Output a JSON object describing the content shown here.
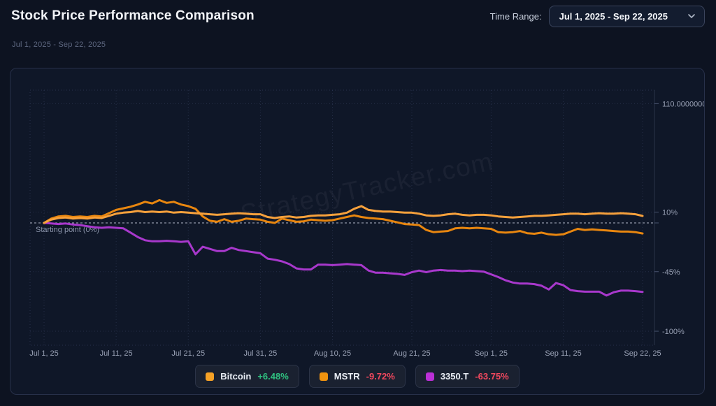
{
  "header": {
    "title": "Stock Price Performance Comparison",
    "time_range_label": "Time Range:",
    "time_range_value": "Jul 1, 2025 - Sep 22, 2025"
  },
  "icons": {
    "time_range_chevron": "chevron-down"
  },
  "subtitle": "Jul 1, 2025 - Sep 22, 2025",
  "watermark": "StrategyTracker.com",
  "colors": {
    "positive": "#2fbf7f",
    "negative": "#f1485e",
    "grid": "#2b3550",
    "axis_line": "#2a3347",
    "tick_text": "#99a1b5",
    "baseline_line": "#cdd4e4",
    "baseline_text": "#8b94aa"
  },
  "chart_data": {
    "type": "line",
    "title": "Stock Price Performance Comparison",
    "x_axis": {
      "unit": "date",
      "total_days": 83,
      "tick_days": [
        0,
        10,
        20,
        30,
        40,
        51,
        62,
        72,
        83
      ],
      "tick_labels": [
        "Jul 1, 25",
        "Jul 11, 25",
        "Jul 21, 25",
        "Jul 31, 25",
        "Aug 10, 25",
        "Aug 21, 25",
        "Sep 1, 25",
        "Sep 11, 25",
        "Sep 22, 25"
      ]
    },
    "y_axis": {
      "unit": "percent-change",
      "tick_values": [
        110,
        10,
        -45,
        -100
      ],
      "tick_labels": [
        "110.0000000",
        "10%",
        "-45%",
        "-100%"
      ],
      "range": [
        -110,
        122
      ],
      "grid": true
    },
    "baseline": {
      "value": 0,
      "label": "Starting point (0%)"
    },
    "legend_position": "bottom",
    "series": [
      {
        "name": "3350.T",
        "change": "-63.75%",
        "color": "#a838cc",
        "swatch_color": "#bb2fd6",
        "points": [
          [
            0,
            0
          ],
          [
            1,
            -0.5
          ],
          [
            2,
            -1
          ],
          [
            3,
            -0.5
          ],
          [
            4,
            -1.5
          ],
          [
            5,
            -2
          ],
          [
            6,
            -3
          ],
          [
            7,
            -4
          ],
          [
            8,
            -4.5
          ],
          [
            9,
            -4
          ],
          [
            10,
            -4.5
          ],
          [
            11,
            -5
          ],
          [
            12,
            -9
          ],
          [
            13,
            -13
          ],
          [
            14,
            -16
          ],
          [
            15,
            -17
          ],
          [
            16,
            -17
          ],
          [
            17,
            -16.5
          ],
          [
            18,
            -17
          ],
          [
            19,
            -17.5
          ],
          [
            20,
            -17
          ],
          [
            21,
            -29
          ],
          [
            22,
            -22
          ],
          [
            23,
            -24
          ],
          [
            24,
            -26
          ],
          [
            25,
            -26
          ],
          [
            26,
            -23
          ],
          [
            27,
            -25
          ],
          [
            28,
            -26
          ],
          [
            29,
            -27
          ],
          [
            30,
            -28
          ],
          [
            31,
            -33
          ],
          [
            32,
            -34
          ],
          [
            33,
            -35.5
          ],
          [
            34,
            -38
          ],
          [
            35,
            -42
          ],
          [
            36,
            -43
          ],
          [
            37,
            -43
          ],
          [
            38,
            -38.5
          ],
          [
            39,
            -38.5
          ],
          [
            40,
            -39
          ],
          [
            41,
            -38.5
          ],
          [
            42,
            -38
          ],
          [
            43,
            -38.5
          ],
          [
            44,
            -39
          ],
          [
            45,
            -44
          ],
          [
            46,
            -46
          ],
          [
            47,
            -46
          ],
          [
            48,
            -46.5
          ],
          [
            49,
            -47
          ],
          [
            50,
            -48
          ],
          [
            51,
            -45.5
          ],
          [
            52,
            -44
          ],
          [
            53,
            -45.5
          ],
          [
            54,
            -44
          ],
          [
            55,
            -43.5
          ],
          [
            56,
            -44
          ],
          [
            57,
            -44
          ],
          [
            58,
            -44.5
          ],
          [
            59,
            -44
          ],
          [
            60,
            -44.5
          ],
          [
            61,
            -45
          ],
          [
            62,
            -47.5
          ],
          [
            63,
            -50
          ],
          [
            64,
            -53
          ],
          [
            65,
            -55
          ],
          [
            66,
            -56
          ],
          [
            67,
            -56
          ],
          [
            68,
            -56.5
          ],
          [
            69,
            -58
          ],
          [
            70,
            -61.5
          ],
          [
            71,
            -55.5
          ],
          [
            72,
            -57.5
          ],
          [
            73,
            -62
          ],
          [
            74,
            -63
          ],
          [
            75,
            -63.5
          ],
          [
            76,
            -63.5
          ],
          [
            77,
            -63.5
          ],
          [
            78,
            -67
          ],
          [
            79,
            -64
          ],
          [
            80,
            -62.5
          ],
          [
            81,
            -62.5
          ],
          [
            82,
            -63
          ],
          [
            83,
            -63.75
          ]
        ]
      },
      {
        "name": "MSTR",
        "change": "-9.72%",
        "color": "#e8860f",
        "swatch_color": "#f0930f",
        "points": [
          [
            0,
            0
          ],
          [
            1,
            4
          ],
          [
            2,
            6
          ],
          [
            3,
            6.5
          ],
          [
            4,
            5.5
          ],
          [
            5,
            6
          ],
          [
            6,
            5.5
          ],
          [
            7,
            6.5
          ],
          [
            8,
            6
          ],
          [
            9,
            9
          ],
          [
            10,
            12
          ],
          [
            11,
            13.5
          ],
          [
            12,
            15
          ],
          [
            13,
            17
          ],
          [
            14,
            19.5
          ],
          [
            15,
            18
          ],
          [
            16,
            21
          ],
          [
            17,
            18.5
          ],
          [
            18,
            19.5
          ],
          [
            19,
            17
          ],
          [
            20,
            15.5
          ],
          [
            21,
            13
          ],
          [
            22,
            6
          ],
          [
            23,
            2
          ],
          [
            24,
            1
          ],
          [
            25,
            3.5
          ],
          [
            26,
            1
          ],
          [
            27,
            2
          ],
          [
            28,
            4
          ],
          [
            29,
            3.5
          ],
          [
            30,
            3
          ],
          [
            31,
            1
          ],
          [
            32,
            0
          ],
          [
            33,
            4
          ],
          [
            34,
            2.5
          ],
          [
            35,
            1
          ],
          [
            36,
            1.5
          ],
          [
            37,
            3
          ],
          [
            38,
            2.5
          ],
          [
            39,
            2
          ],
          [
            40,
            2.5
          ],
          [
            41,
            4
          ],
          [
            42,
            5.5
          ],
          [
            43,
            7
          ],
          [
            44,
            5.5
          ],
          [
            45,
            4.5
          ],
          [
            46,
            4
          ],
          [
            47,
            3.5
          ],
          [
            48,
            2
          ],
          [
            49,
            0.5
          ],
          [
            50,
            -1
          ],
          [
            51,
            -1.5
          ],
          [
            52,
            -2
          ],
          [
            53,
            -6.5
          ],
          [
            54,
            -8.5
          ],
          [
            55,
            -8
          ],
          [
            56,
            -7.5
          ],
          [
            57,
            -5
          ],
          [
            58,
            -4.5
          ],
          [
            59,
            -5
          ],
          [
            60,
            -4.5
          ],
          [
            61,
            -5
          ],
          [
            62,
            -5.5
          ],
          [
            63,
            -8.5
          ],
          [
            64,
            -9
          ],
          [
            65,
            -8.5
          ],
          [
            66,
            -7.5
          ],
          [
            67,
            -9.5
          ],
          [
            68,
            -10
          ],
          [
            69,
            -9
          ],
          [
            70,
            -10.5
          ],
          [
            71,
            -11
          ],
          [
            72,
            -10.5
          ],
          [
            73,
            -8
          ],
          [
            74,
            -5.5
          ],
          [
            75,
            -6.5
          ],
          [
            76,
            -6
          ],
          [
            77,
            -6.5
          ],
          [
            78,
            -7
          ],
          [
            79,
            -7.5
          ],
          [
            80,
            -8
          ],
          [
            81,
            -8
          ],
          [
            82,
            -8.5
          ],
          [
            83,
            -9.72
          ]
        ]
      },
      {
        "name": "Bitcoin",
        "change": "+6.48%",
        "color": "#f7a13c",
        "swatch_color": "#f7a226",
        "points": [
          [
            0,
            0
          ],
          [
            1,
            3
          ],
          [
            2,
            4.5
          ],
          [
            3,
            5
          ],
          [
            4,
            4
          ],
          [
            5,
            4.5
          ],
          [
            6,
            4
          ],
          [
            7,
            5
          ],
          [
            8,
            4.5
          ],
          [
            9,
            6.5
          ],
          [
            10,
            8.5
          ],
          [
            11,
            9.5
          ],
          [
            12,
            10
          ],
          [
            13,
            11
          ],
          [
            14,
            10
          ],
          [
            15,
            10.5
          ],
          [
            16,
            10
          ],
          [
            17,
            10.5
          ],
          [
            18,
            9.5
          ],
          [
            19,
            10
          ],
          [
            20,
            9.5
          ],
          [
            21,
            9
          ],
          [
            22,
            8.5
          ],
          [
            23,
            8
          ],
          [
            24,
            7.5
          ],
          [
            25,
            8
          ],
          [
            26,
            8.5
          ],
          [
            27,
            9
          ],
          [
            28,
            8.5
          ],
          [
            29,
            8
          ],
          [
            30,
            8
          ],
          [
            31,
            5.5
          ],
          [
            32,
            4.5
          ],
          [
            33,
            5.5
          ],
          [
            34,
            6
          ],
          [
            35,
            5
          ],
          [
            36,
            5.5
          ],
          [
            37,
            6.5
          ],
          [
            38,
            7
          ],
          [
            39,
            7
          ],
          [
            40,
            7.5
          ],
          [
            41,
            8
          ],
          [
            42,
            9.5
          ],
          [
            43,
            13
          ],
          [
            44,
            15.5
          ],
          [
            45,
            12
          ],
          [
            46,
            11
          ],
          [
            47,
            10.5
          ],
          [
            48,
            10.5
          ],
          [
            49,
            10
          ],
          [
            50,
            9.5
          ],
          [
            51,
            9.5
          ],
          [
            52,
            8.5
          ],
          [
            53,
            7
          ],
          [
            54,
            6.5
          ],
          [
            55,
            7
          ],
          [
            56,
            8
          ],
          [
            57,
            8.5
          ],
          [
            58,
            7.5
          ],
          [
            59,
            7
          ],
          [
            60,
            7.5
          ],
          [
            61,
            7.5
          ],
          [
            62,
            7
          ],
          [
            63,
            6
          ],
          [
            64,
            5.5
          ],
          [
            65,
            5
          ],
          [
            66,
            5.5
          ],
          [
            67,
            6
          ],
          [
            68,
            6.5
          ],
          [
            69,
            6.5
          ],
          [
            70,
            7
          ],
          [
            71,
            7.5
          ],
          [
            72,
            8
          ],
          [
            73,
            8.5
          ],
          [
            74,
            8.5
          ],
          [
            75,
            8
          ],
          [
            76,
            8.5
          ],
          [
            77,
            9
          ],
          [
            78,
            8.5
          ],
          [
            79,
            8.5
          ],
          [
            80,
            9
          ],
          [
            81,
            8.5
          ],
          [
            82,
            8
          ],
          [
            83,
            6.48
          ]
        ]
      }
    ],
    "legend_order": [
      "Bitcoin",
      "MSTR",
      "3350.T"
    ]
  }
}
